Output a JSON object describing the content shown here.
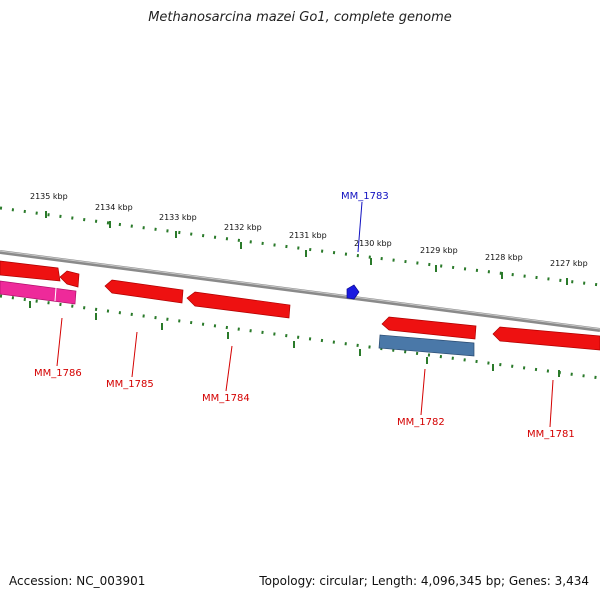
{
  "title": "Methanosarcina mazei Go1, complete genome",
  "footer": {
    "accession": "Accession: NC_003901",
    "summary": "Topology: circular; Length: 4,096,345 bp; Genes: 3,434"
  },
  "ruler_labels": [
    "2135 kbp",
    "2134 kbp",
    "2133 kbp",
    "2132 kbp",
    "2131 kbp",
    "2130 kbp",
    "2129 kbp",
    "2128 kbp",
    "2127 kbp"
  ],
  "gene_labels": {
    "mm1783": "MM_1783",
    "mm1786": "MM_1786",
    "mm1785": "MM_1785",
    "mm1784": "MM_1784",
    "mm1782": "MM_1782",
    "mm1781": "MM_1781"
  },
  "colors": {
    "backbone": "#8a8a8a",
    "cds_red": "#ee1111",
    "cds_pink": "#ee2a9a",
    "cds_blue": "#4a78a8",
    "marker_blue": "#1a1ae0",
    "tick_green": "#2a7a2a",
    "label_red": "#d40000",
    "label_blue": "#1010c0"
  }
}
